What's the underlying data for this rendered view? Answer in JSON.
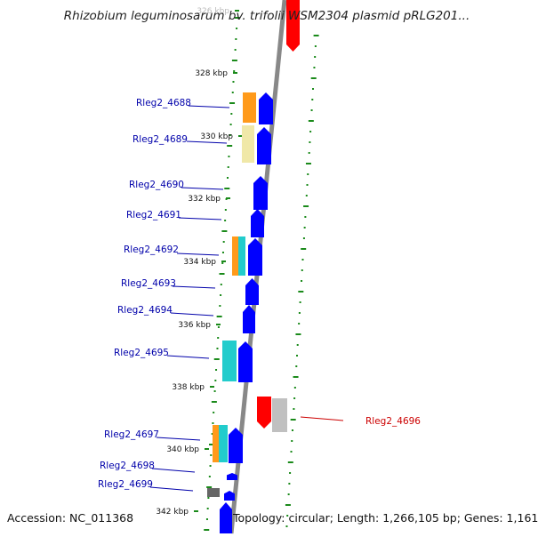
{
  "title": "Rhizobium leguminosarum bv. trifolii WSM2304 plasmid pRLG201...",
  "accession": "Accession: NC_011368",
  "topology": "Topology: circular; Length: 1,266,105 bp; Genes: 1,161",
  "colors": {
    "forward_cds": "#0000ff",
    "reverse_cds": "#ff0000",
    "cog_orange": "#ff9a1a",
    "cog_cyan": "#22cccc",
    "cog_pale_yellow": "#f0e8a8",
    "cog_gray": "#c0c0c0",
    "cog_dark_gray": "#666666",
    "tick": "#1a8a1a",
    "backbone": "#888888",
    "label": "#0000aa",
    "label_reverse": "#cc0000"
  },
  "kbp_labels": [
    {
      "text": "326 kbp",
      "faded": true
    },
    {
      "text": "328 kbp",
      "faded": false
    },
    {
      "text": "330 kbp",
      "faded": false
    },
    {
      "text": "332 kbp",
      "faded": false
    },
    {
      "text": "334 kbp",
      "faded": false
    },
    {
      "text": "336 kbp",
      "faded": false
    },
    {
      "text": "338 kbp",
      "faded": false
    },
    {
      "text": "340 kbp",
      "faded": false
    },
    {
      "text": "342 kbp",
      "faded": false
    }
  ],
  "gene_labels": [
    {
      "text": "Rleg2_4688",
      "strand": "forward"
    },
    {
      "text": "Rleg2_4689",
      "strand": "forward"
    },
    {
      "text": "Rleg2_4690",
      "strand": "forward"
    },
    {
      "text": "Rleg2_4691",
      "strand": "forward"
    },
    {
      "text": "Rleg2_4692",
      "strand": "forward"
    },
    {
      "text": "Rleg2_4693",
      "strand": "forward"
    },
    {
      "text": "Rleg2_4694",
      "strand": "forward"
    },
    {
      "text": "Rleg2_4695",
      "strand": "forward"
    },
    {
      "text": "Rleg2_4696",
      "strand": "reverse"
    },
    {
      "text": "Rleg2_4697",
      "strand": "forward"
    },
    {
      "text": "Rleg2_4698",
      "strand": "forward"
    },
    {
      "text": "Rleg2_4699",
      "strand": "forward"
    }
  ]
}
